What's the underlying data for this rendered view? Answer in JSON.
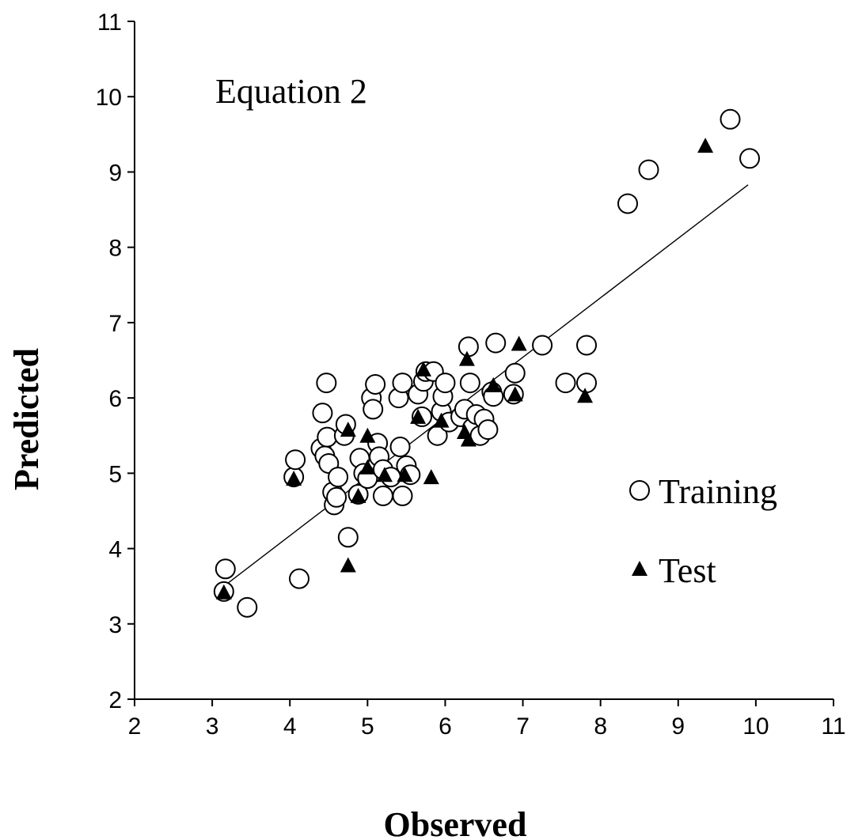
{
  "chart_data": {
    "type": "scatter",
    "title": "",
    "annotation": "Equation 2",
    "xlabel": "Observed",
    "ylabel": "Predicted",
    "xlim": [
      2,
      11
    ],
    "ylim": [
      2,
      11
    ],
    "xticks": [
      "2",
      "3",
      "4",
      "5",
      "6",
      "7",
      "8",
      "9",
      "10",
      "11"
    ],
    "yticks": [
      "2",
      "3",
      "4",
      "5",
      "6",
      "7",
      "8",
      "9",
      "10",
      "11"
    ],
    "grid": false,
    "legend_position": "bottom-right",
    "trendline": {
      "x": [
        3.15,
        9.9
      ],
      "y": [
        3.5,
        8.83
      ]
    },
    "series": [
      {
        "name": "Training",
        "marker": "open-circle",
        "points": [
          [
            3.17,
            3.73
          ],
          [
            3.15,
            3.43
          ],
          [
            3.45,
            3.22
          ],
          [
            4.12,
            3.6
          ],
          [
            4.05,
            4.95
          ],
          [
            4.07,
            5.18
          ],
          [
            4.42,
            5.8
          ],
          [
            4.47,
            6.2
          ],
          [
            4.4,
            5.33
          ],
          [
            4.45,
            5.23
          ],
          [
            4.48,
            5.48
          ],
          [
            4.5,
            5.13
          ],
          [
            4.55,
            4.75
          ],
          [
            4.57,
            4.58
          ],
          [
            4.6,
            4.68
          ],
          [
            4.62,
            4.95
          ],
          [
            4.7,
            5.5
          ],
          [
            4.72,
            5.65
          ],
          [
            4.75,
            4.15
          ],
          [
            4.9,
            5.2
          ],
          [
            4.88,
            4.72
          ],
          [
            4.95,
            5.0
          ],
          [
            5.0,
            4.93
          ],
          [
            5.05,
            6.0
          ],
          [
            5.07,
            5.85
          ],
          [
            5.1,
            6.18
          ],
          [
            5.13,
            5.4
          ],
          [
            5.15,
            5.22
          ],
          [
            5.2,
            5.05
          ],
          [
            5.2,
            4.7
          ],
          [
            5.3,
            4.95
          ],
          [
            5.4,
            6.0
          ],
          [
            5.42,
            5.35
          ],
          [
            5.45,
            6.2
          ],
          [
            5.45,
            4.7
          ],
          [
            5.5,
            5.1
          ],
          [
            5.55,
            4.98
          ],
          [
            5.65,
            6.05
          ],
          [
            5.7,
            5.75
          ],
          [
            5.72,
            6.22
          ],
          [
            5.75,
            6.35
          ],
          [
            5.85,
            6.35
          ],
          [
            5.9,
            5.5
          ],
          [
            5.95,
            5.82
          ],
          [
            5.97,
            6.02
          ],
          [
            6.0,
            6.2
          ],
          [
            6.05,
            5.68
          ],
          [
            6.2,
            5.75
          ],
          [
            6.25,
            5.85
          ],
          [
            6.3,
            6.68
          ],
          [
            6.32,
            6.2
          ],
          [
            6.35,
            5.6
          ],
          [
            6.4,
            5.78
          ],
          [
            6.45,
            5.5
          ],
          [
            6.5,
            5.72
          ],
          [
            6.55,
            5.58
          ],
          [
            6.6,
            6.08
          ],
          [
            6.62,
            6.02
          ],
          [
            6.65,
            6.73
          ],
          [
            6.88,
            6.05
          ],
          [
            6.9,
            6.33
          ],
          [
            7.25,
            6.7
          ],
          [
            7.55,
            6.2
          ],
          [
            7.82,
            6.7
          ],
          [
            7.82,
            6.2
          ],
          [
            8.35,
            8.58
          ],
          [
            8.62,
            9.03
          ],
          [
            9.67,
            9.7
          ],
          [
            9.92,
            9.18
          ]
        ]
      },
      {
        "name": "Test",
        "marker": "filled-triangle",
        "points": [
          [
            3.15,
            3.42
          ],
          [
            4.05,
            4.93
          ],
          [
            4.75,
            3.78
          ],
          [
            4.75,
            5.58
          ],
          [
            4.88,
            4.7
          ],
          [
            5.0,
            5.08
          ],
          [
            5.0,
            5.5
          ],
          [
            5.22,
            4.98
          ],
          [
            5.48,
            4.98
          ],
          [
            5.65,
            5.75
          ],
          [
            5.72,
            6.38
          ],
          [
            5.82,
            4.95
          ],
          [
            5.95,
            5.7
          ],
          [
            6.25,
            5.55
          ],
          [
            6.28,
            6.52
          ],
          [
            6.3,
            5.45
          ],
          [
            6.62,
            6.17
          ],
          [
            6.9,
            6.05
          ],
          [
            6.95,
            6.72
          ],
          [
            7.8,
            6.03
          ],
          [
            9.35,
            9.35
          ]
        ]
      }
    ]
  }
}
